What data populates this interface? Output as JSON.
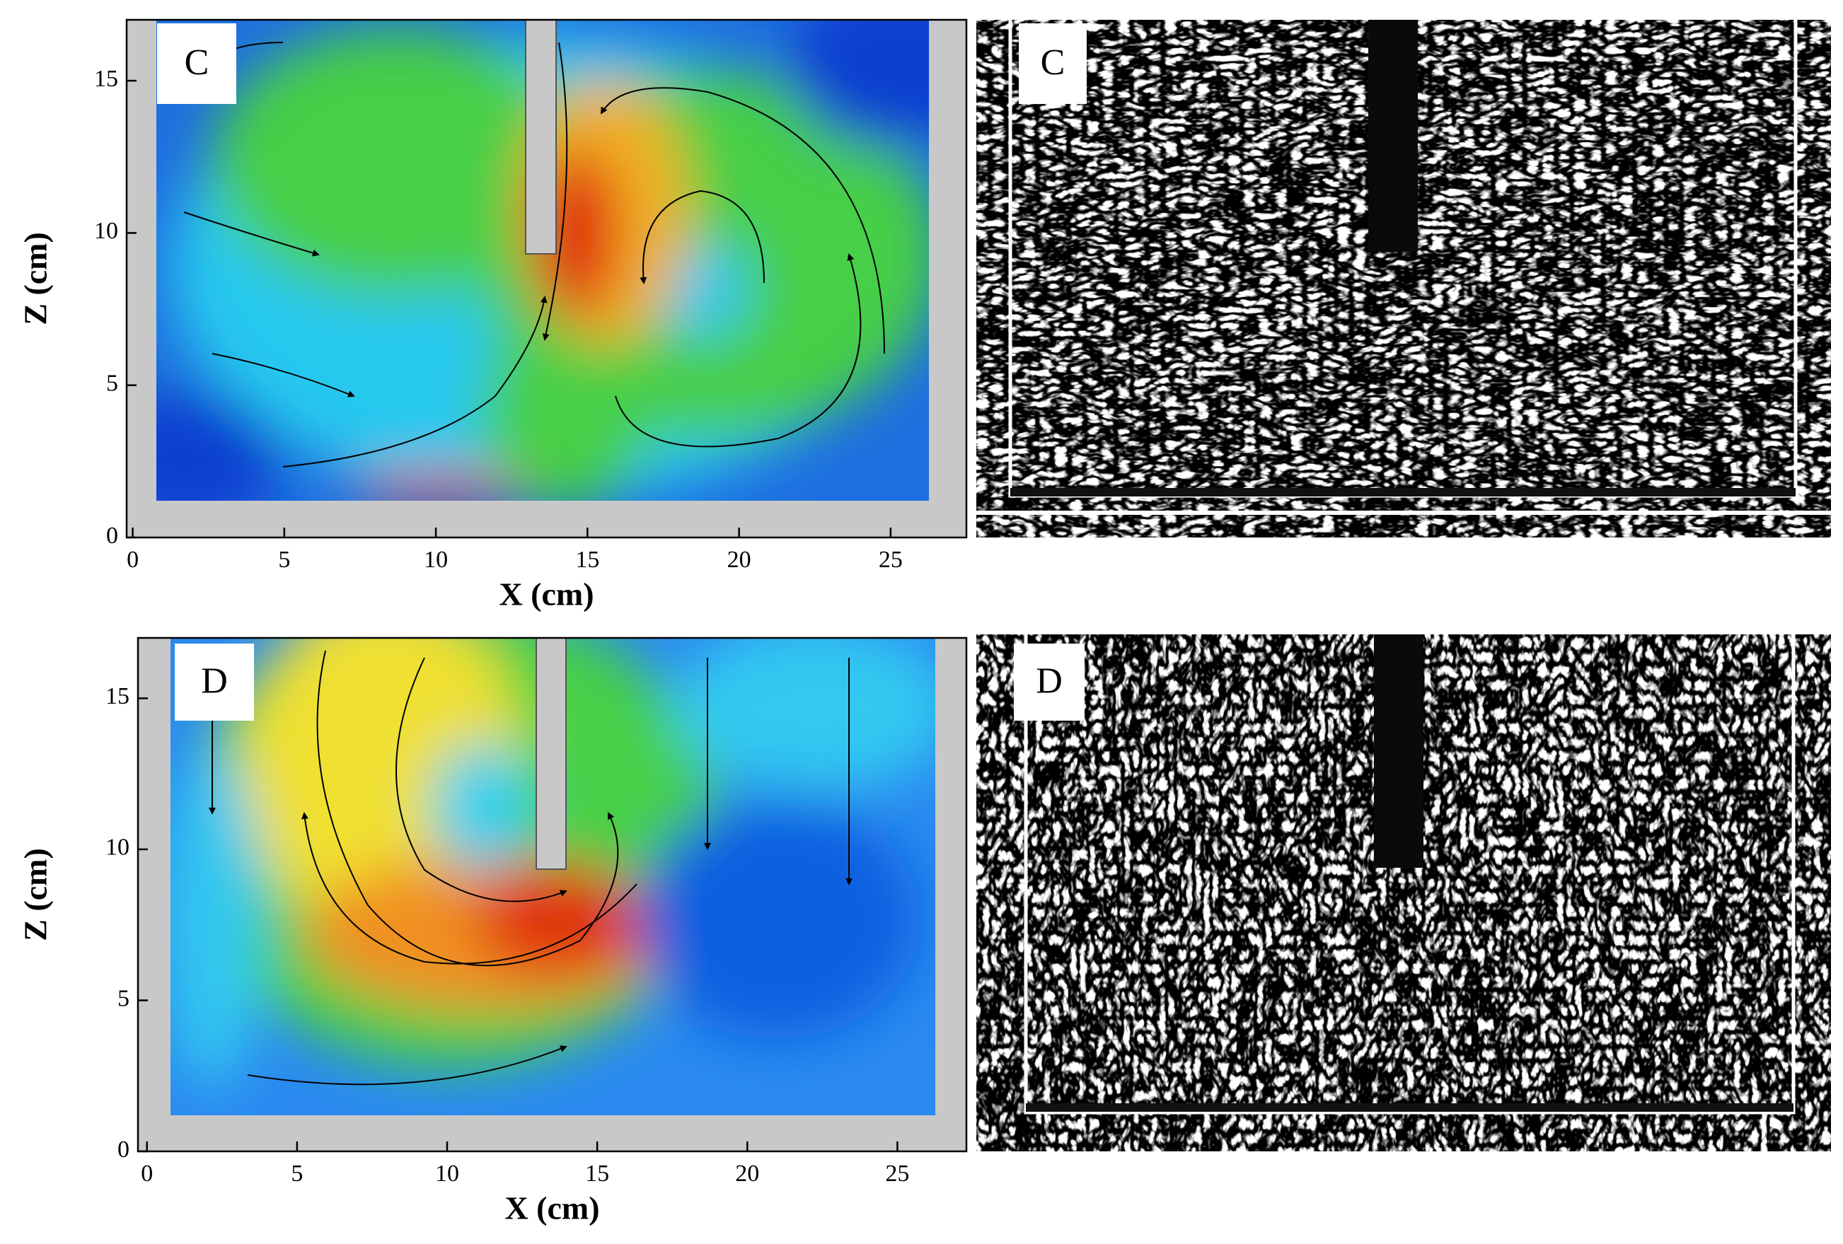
{
  "chart_data": [
    {
      "type": "vector_field",
      "label": "C",
      "photo_label": "C",
      "xlabel": "X (cm)",
      "ylabel": "Z (cm)",
      "xlim": [
        -0.2,
        27.5
      ],
      "ylim": [
        0,
        17
      ],
      "xticks": [
        0,
        5,
        10,
        15,
        20,
        25
      ],
      "yticks": [
        0,
        5,
        10,
        15
      ]
    },
    {
      "type": "vector_field",
      "label": "D",
      "photo_label": "D",
      "xlabel": "X (cm)",
      "ylabel": "Z (cm)",
      "xlim": [
        -0.3,
        27.3
      ],
      "ylim": [
        0,
        17
      ],
      "xticks": [
        0,
        5,
        10,
        15,
        20,
        25
      ],
      "yticks": [
        0,
        5,
        10,
        15
      ]
    }
  ]
}
